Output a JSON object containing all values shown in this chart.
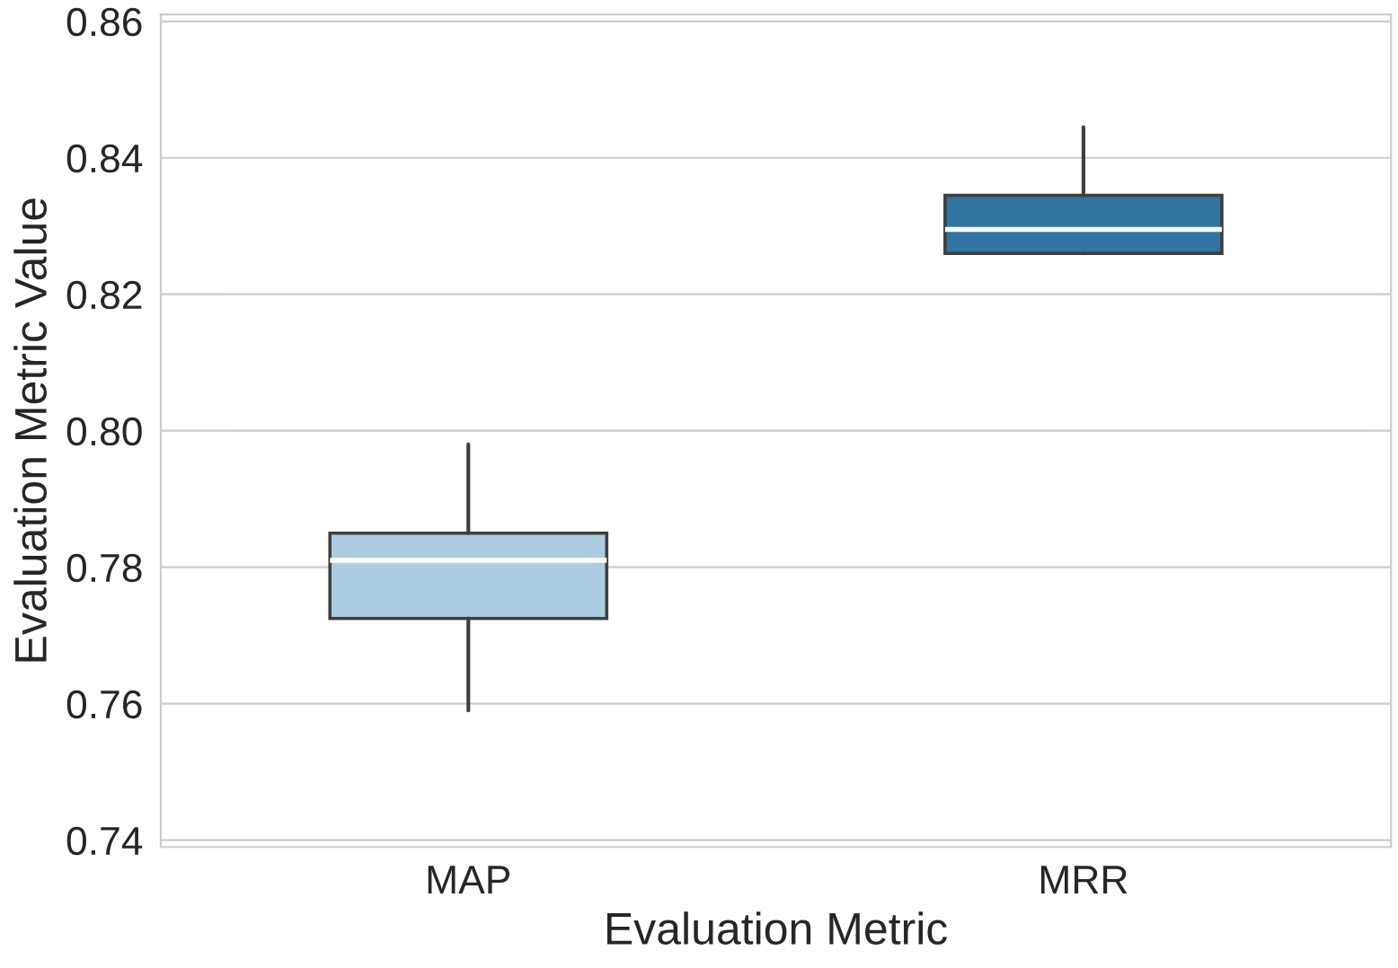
{
  "chart_data": {
    "type": "box",
    "xlabel": "Evaluation Metric",
    "ylabel": "Evaluation Metric Value",
    "categories": [
      "MAP",
      "MRR"
    ],
    "colors": [
      "#abcbe0",
      "#3274a1"
    ],
    "boxes": [
      {
        "low": 0.759,
        "q1": 0.7725,
        "median": 0.781,
        "q3": 0.785,
        "high": 0.798
      },
      {
        "low": 0.826,
        "q1": 0.826,
        "median": 0.8295,
        "q3": 0.8345,
        "high": 0.8445
      }
    ],
    "ylim": [
      0.739,
      0.861
    ],
    "yticks": [
      {
        "value": 0.74,
        "label": "0.74"
      },
      {
        "value": 0.76,
        "label": "0.76"
      },
      {
        "value": 0.78,
        "label": "0.78"
      },
      {
        "value": 0.8,
        "label": "0.80"
      },
      {
        "value": 0.82,
        "label": "0.82"
      },
      {
        "value": 0.84,
        "label": "0.84"
      },
      {
        "value": 0.86,
        "label": "0.86"
      }
    ],
    "grid": "y"
  }
}
